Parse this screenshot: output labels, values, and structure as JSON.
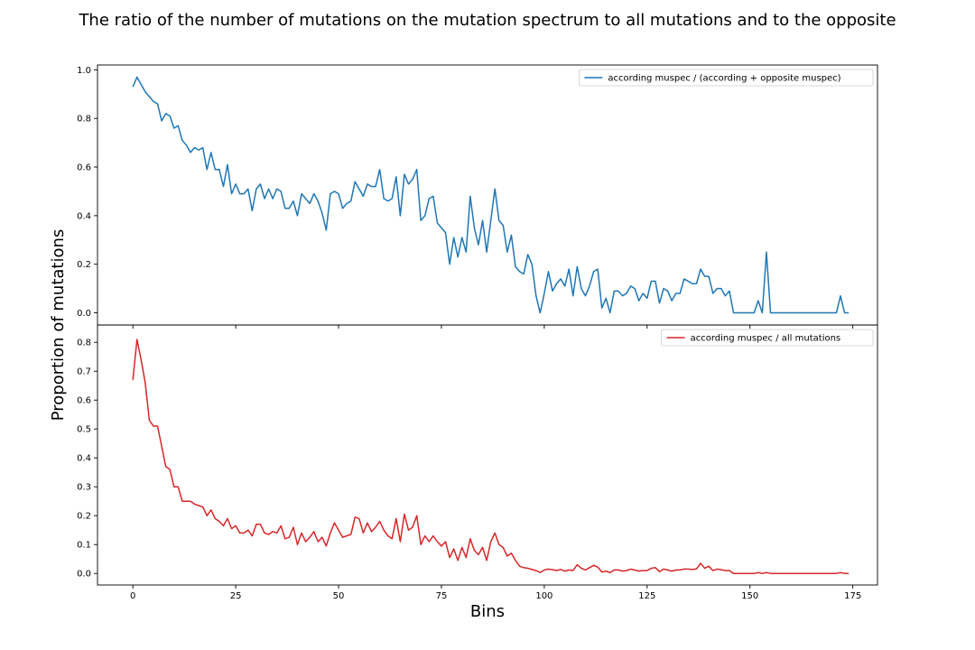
{
  "chart_data": {
    "type": "line",
    "title": "The ratio of the number of mutations on the mutation spectrum to all mutations and to the opposite",
    "xlabel": "Bins",
    "ylabel": "Proportion of mutations",
    "xlim": [
      -8.6,
      181
    ],
    "x_ticks": [
      0,
      25,
      50,
      75,
      100,
      125,
      150,
      175
    ],
    "grid": false,
    "legend_position": "top-right",
    "panels": [
      {
        "ylim": [
          -0.05,
          1.02
        ],
        "y_ticks": [
          0.0,
          0.2,
          0.4,
          0.6,
          0.8,
          1.0
        ],
        "y_tick_labels": [
          "0.0",
          "0.2",
          "0.4",
          "0.6",
          "0.8",
          "1.0"
        ],
        "series": [
          {
            "name": "according muspec / (according + opposite muspec)",
            "color": "#1f77b4",
            "x_start": 0,
            "values": [
              0.93,
              0.97,
              0.94,
              0.91,
              0.89,
              0.87,
              0.86,
              0.79,
              0.82,
              0.81,
              0.76,
              0.77,
              0.71,
              0.69,
              0.66,
              0.68,
              0.67,
              0.68,
              0.59,
              0.66,
              0.59,
              0.59,
              0.52,
              0.61,
              0.49,
              0.53,
              0.49,
              0.49,
              0.51,
              0.42,
              0.51,
              0.53,
              0.47,
              0.51,
              0.47,
              0.51,
              0.5,
              0.43,
              0.43,
              0.46,
              0.4,
              0.49,
              0.47,
              0.45,
              0.49,
              0.46,
              0.41,
              0.34,
              0.49,
              0.5,
              0.49,
              0.43,
              0.45,
              0.46,
              0.54,
              0.51,
              0.48,
              0.53,
              0.52,
              0.52,
              0.59,
              0.47,
              0.46,
              0.47,
              0.56,
              0.4,
              0.57,
              0.53,
              0.55,
              0.59,
              0.38,
              0.4,
              0.47,
              0.48,
              0.37,
              0.35,
              0.33,
              0.2,
              0.31,
              0.23,
              0.31,
              0.25,
              0.48,
              0.35,
              0.28,
              0.38,
              0.25,
              0.38,
              0.51,
              0.38,
              0.36,
              0.25,
              0.32,
              0.19,
              0.17,
              0.16,
              0.24,
              0.2,
              0.07,
              0.0,
              0.08,
              0.17,
              0.09,
              0.12,
              0.14,
              0.11,
              0.18,
              0.07,
              0.19,
              0.1,
              0.07,
              0.11,
              0.17,
              0.18,
              0.02,
              0.06,
              0.0,
              0.09,
              0.09,
              0.07,
              0.08,
              0.11,
              0.1,
              0.05,
              0.08,
              0.06,
              0.13,
              0.13,
              0.04,
              0.1,
              0.09,
              0.05,
              0.08,
              0.08,
              0.14,
              0.13,
              0.12,
              0.12,
              0.18,
              0.15,
              0.15,
              0.08,
              0.1,
              0.1,
              0.07,
              0.09,
              0.0,
              0.0,
              0.0,
              0.0,
              0.0,
              0.0,
              0.05,
              0.0,
              0.25,
              0.0,
              0.0,
              0.0,
              0.0,
              0.0,
              0.0,
              0.0,
              0.0,
              0.0,
              0.0,
              0.0,
              0.0,
              0.0,
              0.0,
              0.0,
              0.0,
              0.0,
              0.07,
              0.0,
              0.0
            ]
          }
        ]
      },
      {
        "ylim": [
          -0.04,
          0.86
        ],
        "y_ticks": [
          0.0,
          0.1,
          0.2,
          0.3,
          0.4,
          0.5,
          0.6,
          0.7,
          0.8
        ],
        "y_tick_labels": [
          "0.0",
          "0.1",
          "0.2",
          "0.3",
          "0.4",
          "0.5",
          "0.6",
          "0.7",
          "0.8"
        ],
        "series": [
          {
            "name": "according muspec / all mutations",
            "color": "#d62728",
            "x_start": 0,
            "values": [
              0.67,
              0.81,
              0.74,
              0.66,
              0.53,
              0.51,
              0.51,
              0.44,
              0.37,
              0.36,
              0.3,
              0.3,
              0.25,
              0.25,
              0.25,
              0.24,
              0.235,
              0.23,
              0.2,
              0.22,
              0.19,
              0.18,
              0.165,
              0.19,
              0.155,
              0.165,
              0.14,
              0.14,
              0.15,
              0.13,
              0.17,
              0.17,
              0.14,
              0.135,
              0.145,
              0.14,
              0.165,
              0.12,
              0.125,
              0.16,
              0.1,
              0.14,
              0.11,
              0.125,
              0.145,
              0.11,
              0.125,
              0.095,
              0.14,
              0.175,
              0.15,
              0.125,
              0.13,
              0.135,
              0.195,
              0.19,
              0.14,
              0.175,
              0.145,
              0.16,
              0.18,
              0.15,
              0.13,
              0.12,
              0.19,
              0.11,
              0.205,
              0.15,
              0.16,
              0.2,
              0.1,
              0.13,
              0.11,
              0.13,
              0.11,
              0.095,
              0.11,
              0.055,
              0.085,
              0.045,
              0.09,
              0.055,
              0.12,
              0.08,
              0.065,
              0.09,
              0.045,
              0.11,
              0.14,
              0.1,
              0.09,
              0.06,
              0.07,
              0.045,
              0.025,
              0.02,
              0.018,
              0.014,
              0.01,
              0.003,
              0.012,
              0.015,
              0.013,
              0.01,
              0.014,
              0.008,
              0.012,
              0.01,
              0.03,
              0.018,
              0.012,
              0.02,
              0.028,
              0.022,
              0.005,
              0.008,
              0.003,
              0.012,
              0.012,
              0.008,
              0.01,
              0.015,
              0.012,
              0.008,
              0.01,
              0.01,
              0.018,
              0.02,
              0.006,
              0.015,
              0.012,
              0.008,
              0.012,
              0.012,
              0.015,
              0.015,
              0.014,
              0.016,
              0.035,
              0.018,
              0.025,
              0.01,
              0.015,
              0.013,
              0.01,
              0.01,
              0.0,
              0.0,
              0.0,
              0.0,
              0.0,
              0.0,
              0.003,
              0.0,
              0.003,
              0.0,
              0.0,
              0.0,
              0.0,
              0.0,
              0.0,
              0.0,
              0.0,
              0.0,
              0.0,
              0.0,
              0.0,
              0.0,
              0.0,
              0.0,
              0.0,
              0.0,
              0.003,
              0.0,
              0.0
            ]
          }
        ]
      }
    ]
  }
}
